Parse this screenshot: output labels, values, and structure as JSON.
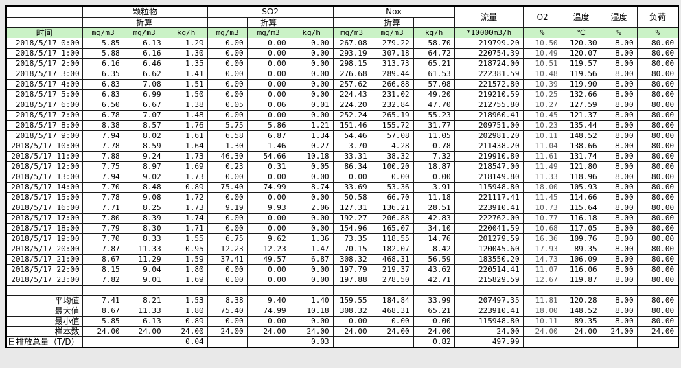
{
  "colors": {
    "page_bg": "#e9e9e9",
    "header_green": "#caf2c6",
    "grid": "#1c1c1c",
    "o2_text": "#595959"
  },
  "table": {
    "header": {
      "time_label": "时间",
      "groups": [
        {
          "name": "颗粒物",
          "sub": "折算"
        },
        {
          "name": "SO2",
          "sub": "折算"
        },
        {
          "name": "Nox",
          "sub": "折算"
        }
      ],
      "single_columns": [
        {
          "name": "流量"
        },
        {
          "name": "O2"
        },
        {
          "name": "温度"
        },
        {
          "name": "湿度"
        },
        {
          "name": "负荷"
        }
      ],
      "units": [
        "mg/m3",
        "mg/m3",
        "kg/h",
        "mg/m3",
        "mg/m3",
        "kg/h",
        "mg/m3",
        "mg/m3",
        "kg/h",
        "*10000m3/h",
        "%",
        "℃",
        "%",
        "%"
      ]
    },
    "rows": [
      {
        "time": "2018/5/17 0:00",
        "values": [
          "5.85",
          "6.13",
          "1.29",
          "0.00",
          "0.00",
          "0.00",
          "267.08",
          "279.22",
          "58.70",
          "219799.20",
          "10.50",
          "120.30",
          "8.00",
          "80.00"
        ]
      },
      {
        "time": "2018/5/17 1:00",
        "values": [
          "5.88",
          "6.16",
          "1.30",
          "0.00",
          "0.00",
          "0.00",
          "293.19",
          "307.18",
          "64.72",
          "220754.39",
          "10.49",
          "120.07",
          "8.00",
          "80.00"
        ]
      },
      {
        "time": "2018/5/17 2:00",
        "values": [
          "6.16",
          "6.46",
          "1.35",
          "0.00",
          "0.00",
          "0.00",
          "298.15",
          "313.73",
          "65.21",
          "218724.00",
          "10.51",
          "119.57",
          "8.00",
          "80.00"
        ]
      },
      {
        "time": "2018/5/17 3:00",
        "values": [
          "6.35",
          "6.62",
          "1.41",
          "0.00",
          "0.00",
          "0.00",
          "276.68",
          "289.44",
          "61.53",
          "222381.59",
          "10.48",
          "119.56",
          "8.00",
          "80.00"
        ]
      },
      {
        "time": "2018/5/17 4:00",
        "values": [
          "6.83",
          "7.08",
          "1.51",
          "0.00",
          "0.00",
          "0.00",
          "257.62",
          "266.88",
          "57.08",
          "221572.80",
          "10.39",
          "119.90",
          "8.00",
          "80.00"
        ]
      },
      {
        "time": "2018/5/17 5:00",
        "values": [
          "6.83",
          "6.99",
          "1.50",
          "0.00",
          "0.00",
          "0.00",
          "224.43",
          "231.02",
          "49.20",
          "219210.59",
          "10.25",
          "132.66",
          "8.00",
          "80.00"
        ]
      },
      {
        "time": "2018/5/17 6:00",
        "values": [
          "6.50",
          "6.67",
          "1.38",
          "0.05",
          "0.06",
          "0.01",
          "224.20",
          "232.84",
          "47.70",
          "212755.80",
          "10.27",
          "127.59",
          "8.00",
          "80.00"
        ]
      },
      {
        "time": "2018/5/17 7:00",
        "values": [
          "6.78",
          "7.07",
          "1.48",
          "0.00",
          "0.00",
          "0.00",
          "252.24",
          "265.19",
          "55.23",
          "218960.41",
          "10.45",
          "121.37",
          "8.00",
          "80.00"
        ]
      },
      {
        "time": "2018/5/17 8:00",
        "values": [
          "8.38",
          "8.57",
          "1.76",
          "5.75",
          "5.86",
          "1.21",
          "151.46",
          "155.72",
          "31.77",
          "209751.00",
          "10.23",
          "135.44",
          "8.00",
          "80.00"
        ]
      },
      {
        "time": "2018/5/17 9:00",
        "values": [
          "7.94",
          "8.02",
          "1.61",
          "6.58",
          "6.87",
          "1.34",
          "54.46",
          "57.08",
          "11.05",
          "202981.20",
          "10.11",
          "148.52",
          "8.00",
          "80.00"
        ]
      },
      {
        "time": "2018/5/17 10:00",
        "values": [
          "7.78",
          "8.59",
          "1.64",
          "1.30",
          "1.46",
          "0.27",
          "3.70",
          "4.28",
          "0.78",
          "211438.20",
          "11.04",
          "138.66",
          "8.00",
          "80.00"
        ]
      },
      {
        "time": "2018/5/17 11:00",
        "values": [
          "7.88",
          "9.24",
          "1.73",
          "46.30",
          "54.66",
          "10.18",
          "33.31",
          "38.32",
          "7.32",
          "219910.80",
          "11.61",
          "131.74",
          "8.00",
          "80.00"
        ]
      },
      {
        "time": "2018/5/17 12:00",
        "values": [
          "7.75",
          "8.97",
          "1.69",
          "0.23",
          "0.31",
          "0.05",
          "86.34",
          "100.20",
          "18.87",
          "218547.00",
          "11.49",
          "121.80",
          "8.00",
          "80.00"
        ]
      },
      {
        "time": "2018/5/17 13:00",
        "values": [
          "7.94",
          "9.02",
          "1.73",
          "0.00",
          "0.00",
          "0.00",
          "0.00",
          "0.00",
          "0.00",
          "218149.80",
          "11.33",
          "118.96",
          "8.00",
          "80.00"
        ]
      },
      {
        "time": "2018/5/17 14:00",
        "values": [
          "7.70",
          "8.48",
          "0.89",
          "75.40",
          "74.99",
          "8.74",
          "33.69",
          "53.36",
          "3.91",
          "115948.80",
          "18.00",
          "105.93",
          "8.00",
          "80.00"
        ]
      },
      {
        "time": "2018/5/17 15:00",
        "values": [
          "7.78",
          "9.08",
          "1.72",
          "0.00",
          "0.00",
          "0.00",
          "50.58",
          "66.70",
          "11.18",
          "221117.41",
          "11.45",
          "114.66",
          "8.00",
          "80.00"
        ]
      },
      {
        "time": "2018/5/17 16:00",
        "values": [
          "7.71",
          "8.25",
          "1.73",
          "9.19",
          "9.93",
          "2.06",
          "127.31",
          "136.21",
          "28.51",
          "223910.41",
          "10.73",
          "115.64",
          "8.00",
          "80.00"
        ]
      },
      {
        "time": "2018/5/17 17:00",
        "values": [
          "7.80",
          "8.39",
          "1.74",
          "0.00",
          "0.00",
          "0.00",
          "192.27",
          "206.88",
          "42.83",
          "222762.00",
          "10.77",
          "116.18",
          "8.00",
          "80.00"
        ]
      },
      {
        "time": "2018/5/17 18:00",
        "values": [
          "7.79",
          "8.30",
          "1.71",
          "0.00",
          "0.00",
          "0.00",
          "154.96",
          "165.07",
          "34.10",
          "220041.59",
          "10.68",
          "117.05",
          "8.00",
          "80.00"
        ]
      },
      {
        "time": "2018/5/17 19:00",
        "values": [
          "7.70",
          "8.33",
          "1.55",
          "6.75",
          "9.62",
          "1.36",
          "73.35",
          "118.55",
          "14.76",
          "201279.59",
          "16.36",
          "109.76",
          "8.00",
          "80.00"
        ]
      },
      {
        "time": "2018/5/17 20:00",
        "values": [
          "7.87",
          "11.33",
          "0.95",
          "12.23",
          "12.23",
          "1.47",
          "70.15",
          "182.07",
          "8.42",
          "120045.60",
          "17.93",
          "89.35",
          "8.00",
          "80.00"
        ]
      },
      {
        "time": "2018/5/17 21:00",
        "values": [
          "8.67",
          "11.29",
          "1.59",
          "37.41",
          "49.57",
          "6.87",
          "308.32",
          "468.31",
          "56.59",
          "183550.20",
          "14.73",
          "106.09",
          "8.00",
          "80.00"
        ]
      },
      {
        "time": "2018/5/17 22:00",
        "values": [
          "8.15",
          "9.04",
          "1.80",
          "0.00",
          "0.00",
          "0.00",
          "197.79",
          "219.37",
          "43.62",
          "220514.41",
          "11.07",
          "116.06",
          "8.00",
          "80.00"
        ]
      },
      {
        "time": "2018/5/17 23:00",
        "values": [
          "7.82",
          "9.01",
          "1.69",
          "0.00",
          "0.00",
          "0.00",
          "197.88",
          "278.50",
          "42.71",
          "215829.59",
          "12.67",
          "119.87",
          "8.00",
          "80.00"
        ]
      }
    ],
    "summary": [
      {
        "label": "平均值",
        "values": [
          "7.41",
          "8.21",
          "1.53",
          "8.38",
          "9.40",
          "1.40",
          "159.55",
          "184.84",
          "33.99",
          "207497.35",
          "11.81",
          "120.28",
          "8.00",
          "80.00"
        ]
      },
      {
        "label": "最大值",
        "values": [
          "8.67",
          "11.33",
          "1.80",
          "75.40",
          "74.99",
          "10.18",
          "308.32",
          "468.31",
          "65.21",
          "223910.41",
          "18.00",
          "148.52",
          "8.00",
          "80.00"
        ]
      },
      {
        "label": "最小值",
        "values": [
          "5.85",
          "6.13",
          "0.89",
          "0.00",
          "0.00",
          "0.00",
          "0.00",
          "0.00",
          "0.00",
          "115948.80",
          "10.11",
          "89.35",
          "8.00",
          "80.00"
        ]
      },
      {
        "label": "样本数",
        "values": [
          "24.00",
          "24.00",
          "24.00",
          "24.00",
          "24.00",
          "24.00",
          "24.00",
          "24.00",
          "24.00",
          "24.00",
          "24.00",
          "24.00",
          "24.00",
          "24.00"
        ]
      },
      {
        "label": "日排放总量（T/D）",
        "values": [
          "",
          "",
          "0.04",
          "",
          "",
          "0.03",
          "",
          "",
          "0.82",
          "497.99",
          "",
          "",
          "",
          ""
        ]
      }
    ]
  }
}
